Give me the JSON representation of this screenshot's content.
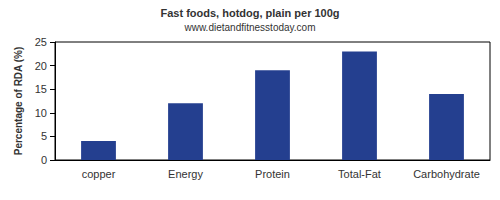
{
  "chart_data": {
    "type": "bar",
    "title": "Fast foods, hotdog, plain per 100g",
    "subtitle": "www.dietandfitnesstoday.com",
    "y_label": "Percentage of RDA (%)",
    "categories": [
      "copper",
      "Energy",
      "Protein",
      "Total-Fat",
      "Carbohydrate"
    ],
    "values": [
      4,
      12,
      19,
      23,
      14
    ],
    "color": "#243f8f",
    "ylim": [
      0,
      25
    ],
    "yticks": [
      0,
      5,
      10,
      15,
      20,
      25
    ],
    "grid": false
  }
}
